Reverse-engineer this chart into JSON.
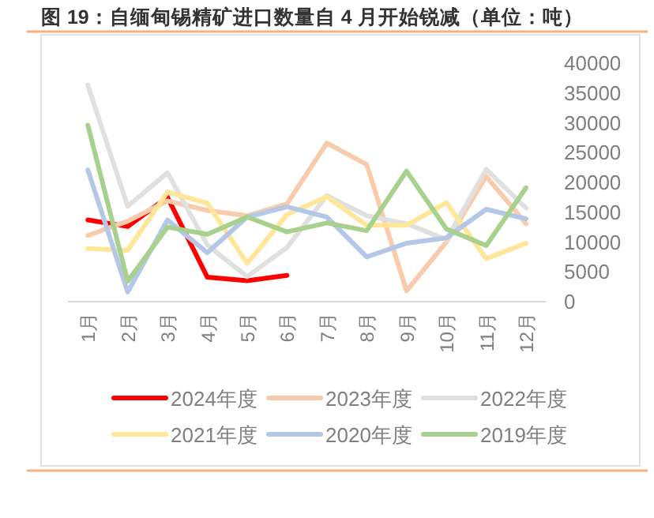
{
  "chart_data": {
    "type": "line",
    "title": "图 19：自缅甸锡精矿进口数量自 4 月开始锐减（单位：吨）",
    "categories": [
      "1月",
      "2月",
      "3月",
      "4月",
      "5月",
      "6月",
      "7月",
      "8月",
      "9月",
      "10月",
      "11月",
      "12月"
    ],
    "series": [
      {
        "name": "2024年度",
        "color": "#ff0000",
        "values": [
          13700,
          12600,
          17500,
          4100,
          3500,
          4400,
          null,
          null,
          null,
          null,
          null,
          null
        ]
      },
      {
        "name": "2023年度",
        "color": "#f8cbad",
        "values": [
          11100,
          13500,
          16900,
          15300,
          14400,
          16400,
          26600,
          23000,
          1800,
          10000,
          21000,
          13100
        ]
      },
      {
        "name": "2022年度",
        "color": "#e0e0e0",
        "values": [
          36300,
          16000,
          21600,
          9500,
          4200,
          9100,
          17800,
          14400,
          13100,
          10400,
          22200,
          15700
        ]
      },
      {
        "name": "2021年度",
        "color": "#ffe699",
        "values": [
          8900,
          8600,
          18400,
          16500,
          6400,
          14600,
          17600,
          12800,
          12800,
          16600,
          7200,
          9800
        ]
      },
      {
        "name": "2020年度",
        "color": "#b4c7e7",
        "values": [
          22100,
          1600,
          13700,
          8200,
          14200,
          15900,
          14200,
          7500,
          9800,
          10700,
          15500,
          13900
        ]
      },
      {
        "name": "2019年度",
        "color": "#a9d18e",
        "values": [
          29600,
          3400,
          12500,
          11300,
          14200,
          11700,
          13200,
          11900,
          21900,
          12200,
          9400,
          19100
        ]
      }
    ],
    "ylim": [
      0,
      40000
    ],
    "yticks": [
      0,
      5000,
      10000,
      15000,
      20000,
      25000,
      30000,
      35000,
      40000
    ],
    "grid": false,
    "legend": "bottom",
    "line_style": "solid",
    "marker": "none"
  }
}
